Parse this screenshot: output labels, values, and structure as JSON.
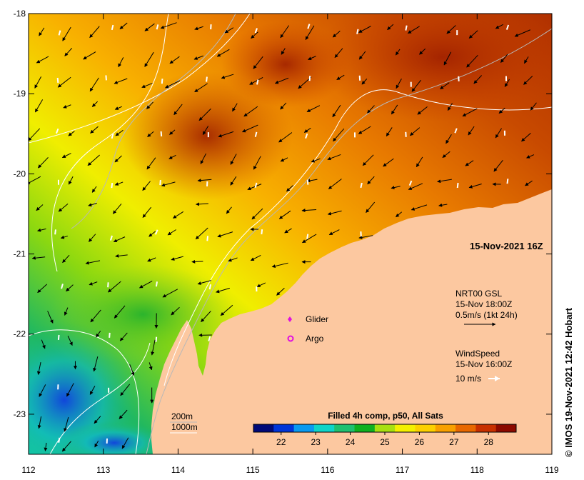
{
  "map": {
    "x_ticks": [
      "112",
      "113",
      "114",
      "115",
      "116",
      "117",
      "118",
      "119"
    ],
    "y_ticks": [
      "-18",
      "-19",
      "-20",
      "-21",
      "-22",
      "-23"
    ],
    "x_range": [
      112,
      119
    ],
    "y_range": [
      -23.5,
      -18
    ],
    "timestamp": "15-Nov-2021 16Z",
    "currents": {
      "title": "NRT00 GSL",
      "time": "15-Nov 18:00Z",
      "scale": "0.5m/s (1kt 24h)"
    },
    "wind": {
      "title": "WindSpeed",
      "time": "15-Nov 16:00Z",
      "scale": "10 m/s"
    },
    "legend": {
      "glider": "Glider",
      "argo": "Argo"
    },
    "bathymetry": {
      "shallow": "200m",
      "deep": "1000m"
    },
    "colorbar": {
      "title": "Filled 4h comp, p50, All Sats",
      "ticks": [
        "22",
        "23",
        "24",
        "25",
        "26",
        "27",
        "28"
      ],
      "range": [
        21.2,
        28.8
      ],
      "colors": [
        "#000a78",
        "#0035d8",
        "#0a9af0",
        "#10d4c8",
        "#20c070",
        "#10b020",
        "#a8e010",
        "#f4f000",
        "#fcd000",
        "#f8a000",
        "#e86800",
        "#c83000",
        "#8c0a00"
      ]
    },
    "land_color": "#fcc8a0",
    "credit": "© IMOS 19-Nov-2021 12:42 Hobart"
  }
}
